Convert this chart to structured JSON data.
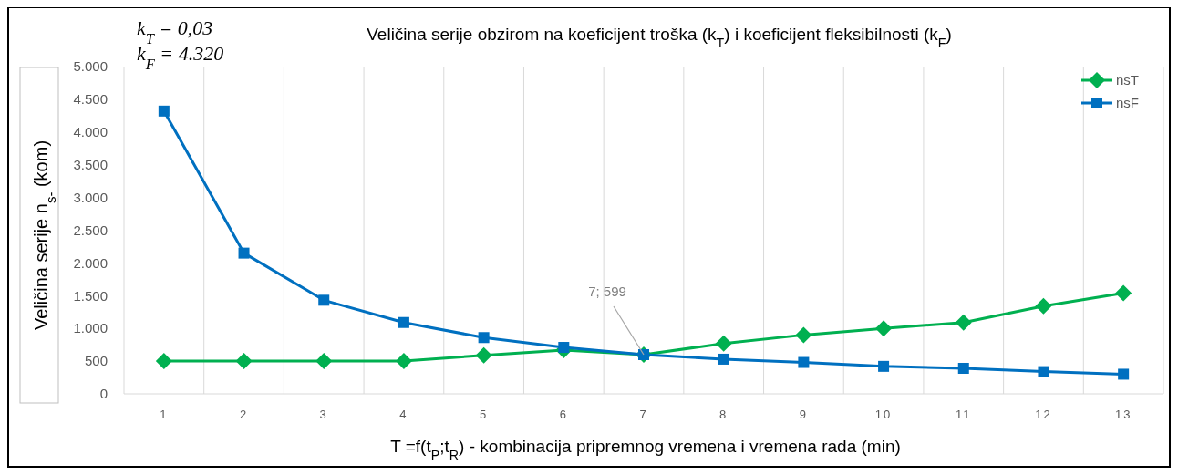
{
  "chart_data": {
    "type": "line",
    "title": "Veličina serije obzirom  na koeficijent troška (k$_{T}$) i koeficijent fleksibilnosti (k$_{F}$)",
    "xlabel": "T =f(t$_{P}$;t$_{R}$)    -    kombinacija pripremnog vremena i vremena rada (min)",
    "ylabel": "Veličina serije n$_{s-}$ (kom)",
    "categories": [
      "1",
      "2",
      "3",
      "4",
      "5",
      "6",
      "7",
      "8",
      "9",
      "10",
      "11",
      "12",
      "13"
    ],
    "series": [
      {
        "name": "nsT",
        "color": "#00b050",
        "marker": "diamond",
        "values": [
          500,
          500,
          500,
          500,
          590,
          670,
          599,
          770,
          900,
          1000,
          1090,
          1340,
          1540
        ]
      },
      {
        "name": "nsF",
        "color": "#0070c0",
        "marker": "square",
        "values": [
          4320,
          2150,
          1430,
          1090,
          860,
          710,
          599,
          530,
          480,
          420,
          390,
          340,
          300
        ]
      }
    ],
    "ylim": [
      0,
      5000
    ],
    "yticks": [
      {
        "value": 0,
        "label": "0"
      },
      {
        "value": 500,
        "label": "500"
      },
      {
        "value": 1000,
        "label": "1.000"
      },
      {
        "value": 1500,
        "label": "1.500"
      },
      {
        "value": 2000,
        "label": "2.000"
      },
      {
        "value": 2500,
        "label": "2.500"
      },
      {
        "value": 3000,
        "label": "3.000"
      },
      {
        "value": 3500,
        "label": "3.500"
      },
      {
        "value": 4000,
        "label": "4.000"
      },
      {
        "value": 4500,
        "label": "4.500"
      },
      {
        "value": 5000,
        "label": "5.000"
      }
    ],
    "grid": "x",
    "legend": "top right",
    "line_style": "solid",
    "annotations": [
      "k$_{T}$ = 0,03",
      "k$_{F}$ = 4.320",
      {
        "text": "7; 599",
        "x": "7",
        "y": 599
      }
    ]
  }
}
